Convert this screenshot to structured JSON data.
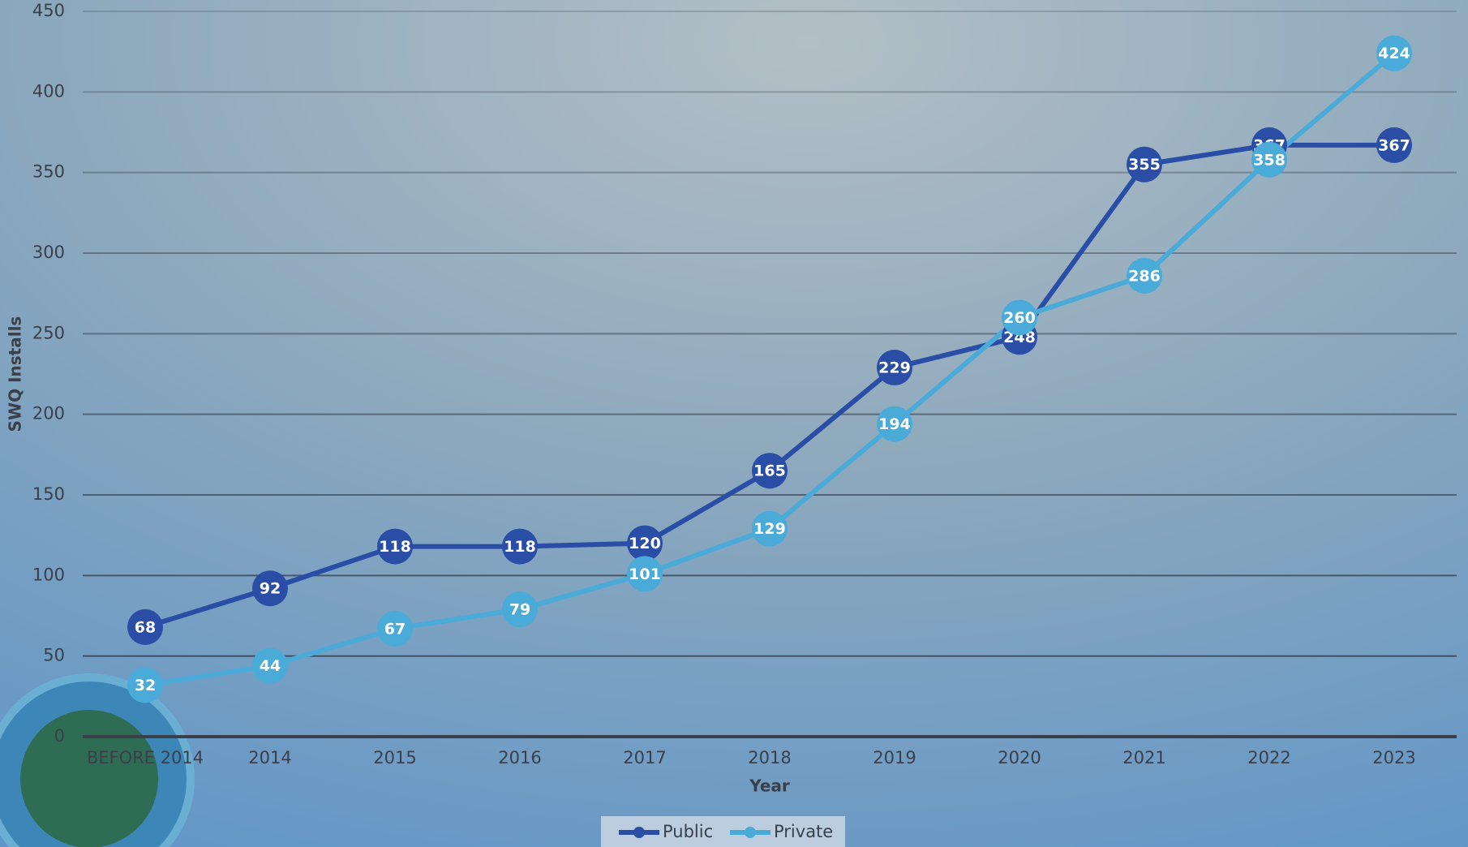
{
  "chart_data": {
    "type": "line",
    "y_label": "SWQ Installs",
    "x_label": "Year",
    "categories": [
      "BEFORE 2014",
      "2014",
      "2015",
      "2016",
      "2017",
      "2018",
      "2019",
      "2020",
      "2021",
      "2022",
      "2023"
    ],
    "series": [
      {
        "name": "Public",
        "color": "#2a4ea6",
        "values": [
          68,
          92,
          118,
          118,
          120,
          165,
          229,
          248,
          355,
          367,
          367
        ]
      },
      {
        "name": "Private",
        "color": "#4aaad8",
        "values": [
          32,
          44,
          67,
          79,
          101,
          129,
          194,
          260,
          286,
          358,
          424
        ]
      }
    ],
    "ylim": [
      0,
      450
    ],
    "yticks": [
      0,
      50,
      100,
      150,
      200,
      250,
      300,
      350,
      400,
      450
    ],
    "grid": true,
    "legend": "bottom"
  }
}
